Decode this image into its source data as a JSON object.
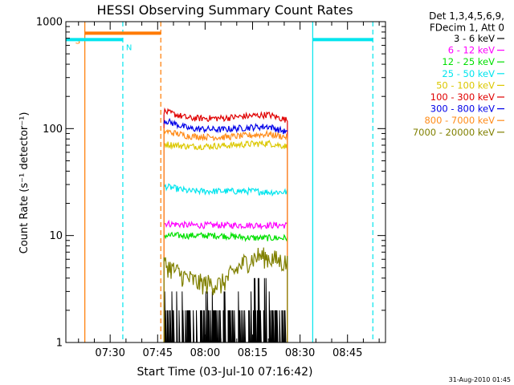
{
  "chart_data": {
    "type": "line",
    "title": "HESSI Observing Summary Count Rates",
    "xlabel": "Start Time (03-Jul-10 07:16:42)",
    "ylabel": "Count Rate (s⁻¹ detector⁻¹)",
    "y_scale": "log",
    "ylim": [
      1,
      1000
    ],
    "xlim": [
      "07:16",
      "08:57"
    ],
    "x_ticks": [
      "07:30",
      "07:45",
      "08:00",
      "08:15",
      "08:30",
      "08:45"
    ],
    "y_ticks": [
      "1",
      "10",
      "100",
      "1000"
    ],
    "grid": false,
    "legend_position": "outside-right",
    "legend_header": [
      "Det 1,3,4,5,6,9,",
      "FDecim 1, Att 0"
    ],
    "timestamp": "31-Aug-2010 01:45",
    "data_start": "07:47",
    "data_end": "08:26",
    "series": [
      {
        "name": "3 - 6 keV",
        "color": "#000000",
        "x": [
          "07:47",
          "07:55",
          "08:05",
          "08:15",
          "08:20",
          "08:26"
        ],
        "y": [
          1.6,
          1.5,
          1.6,
          1.7,
          2.0,
          1.6
        ]
      },
      {
        "name": "6 - 12 keV",
        "color": "#ff00ff",
        "x": [
          "07:47",
          "07:55",
          "08:05",
          "08:15",
          "08:20",
          "08:26"
        ],
        "y": [
          13,
          12.5,
          12.5,
          12.5,
          12.5,
          12.5
        ]
      },
      {
        "name": "12 - 25 keV",
        "color": "#00e000",
        "x": [
          "07:47",
          "07:55",
          "08:05",
          "08:15",
          "08:20",
          "08:26"
        ],
        "y": [
          10,
          10,
          10,
          9.5,
          9.5,
          9.5
        ]
      },
      {
        "name": "25 - 50 keV",
        "color": "#00e5ee",
        "x": [
          "07:47",
          "07:55",
          "08:05",
          "08:15",
          "08:20",
          "08:26"
        ],
        "y": [
          29,
          26,
          26,
          26,
          25.5,
          25.5
        ]
      },
      {
        "name": "50 - 100 keV",
        "color": "#dcc800",
        "x": [
          "07:47",
          "07:55",
          "08:05",
          "08:15",
          "08:20",
          "08:26"
        ],
        "y": [
          72,
          68,
          69,
          72,
          73,
          68
        ]
      },
      {
        "name": "100 - 300 keV",
        "color": "#e00000",
        "x": [
          "07:47",
          "07:55",
          "08:05",
          "08:15",
          "08:20",
          "08:26"
        ],
        "y": [
          145,
          125,
          125,
          132,
          135,
          120
        ]
      },
      {
        "name": "300 - 800 keV",
        "color": "#0000e8",
        "x": [
          "07:47",
          "07:55",
          "08:05",
          "08:15",
          "08:20",
          "08:26"
        ],
        "y": [
          120,
          100,
          98,
          103,
          105,
          92
        ]
      },
      {
        "name": "800 - 7000 keV",
        "color": "#ff8c1a",
        "x": [
          "07:47",
          "07:55",
          "08:05",
          "08:15",
          "08:20",
          "08:26"
        ],
        "y": [
          95,
          85,
          83,
          87,
          89,
          83
        ]
      },
      {
        "name": "7000 - 20000 keV",
        "color": "#808000",
        "x": [
          "07:47",
          "07:53",
          "07:58",
          "08:05",
          "08:12",
          "08:17",
          "08:22",
          "08:26"
        ],
        "y": [
          5.5,
          4.2,
          3.6,
          3.5,
          5.5,
          6.5,
          6.0,
          5.5
        ]
      }
    ],
    "annotations": [
      {
        "label": "S",
        "color": "#ff7a00",
        "start": "07:22",
        "end": "07:46",
        "y": 780
      },
      {
        "label": "N",
        "color": "#00e5ee",
        "start": "07:16",
        "end": "07:34",
        "y": 680
      },
      {
        "label": "",
        "color": "#00e5ee",
        "start": "08:34",
        "end": "08:53",
        "y": 680
      }
    ],
    "markers": [
      {
        "time": "07:22",
        "color": "#ff7a00",
        "style": "solid"
      },
      {
        "time": "07:34",
        "color": "#00e5ee",
        "style": "dashed"
      },
      {
        "time": "07:46",
        "color": "#ff7a00",
        "style": "dashed"
      },
      {
        "time": "08:34",
        "color": "#00e5ee",
        "style": "solid"
      },
      {
        "time": "08:53",
        "color": "#00e5ee",
        "style": "dashed"
      }
    ]
  }
}
